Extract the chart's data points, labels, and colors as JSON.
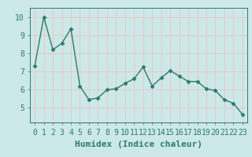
{
  "x": [
    0,
    1,
    2,
    3,
    4,
    5,
    6,
    7,
    8,
    9,
    10,
    11,
    12,
    13,
    14,
    15,
    16,
    17,
    18,
    19,
    20,
    21,
    22,
    23
  ],
  "y": [
    7.3,
    10.0,
    8.2,
    8.55,
    9.35,
    6.2,
    5.45,
    5.55,
    6.0,
    6.05,
    6.35,
    6.6,
    7.25,
    6.2,
    6.65,
    7.05,
    6.75,
    6.45,
    6.45,
    6.05,
    5.95,
    5.45,
    5.25,
    4.65
  ],
  "line_color": "#2d7a6e",
  "marker": "D",
  "marker_size": 2.5,
  "line_width": 1.0,
  "xlabel": "Humidex (Indice chaleur)",
  "ylim": [
    4.2,
    10.5
  ],
  "xlim": [
    -0.5,
    23.5
  ],
  "yticks": [
    5,
    6,
    7,
    8,
    9,
    10
  ],
  "xtick_labels": [
    "0",
    "1",
    "2",
    "3",
    "4",
    "5",
    "6",
    "7",
    "8",
    "9",
    "10",
    "11",
    "12",
    "13",
    "14",
    "15",
    "16",
    "17",
    "18",
    "19",
    "20",
    "21",
    "22",
    "23"
  ],
  "bg_color": "#cce8e8",
  "grid_color": "#e8c8c8",
  "xlabel_fontsize": 8,
  "tick_fontsize": 7,
  "title_color": "#2d7a6e"
}
